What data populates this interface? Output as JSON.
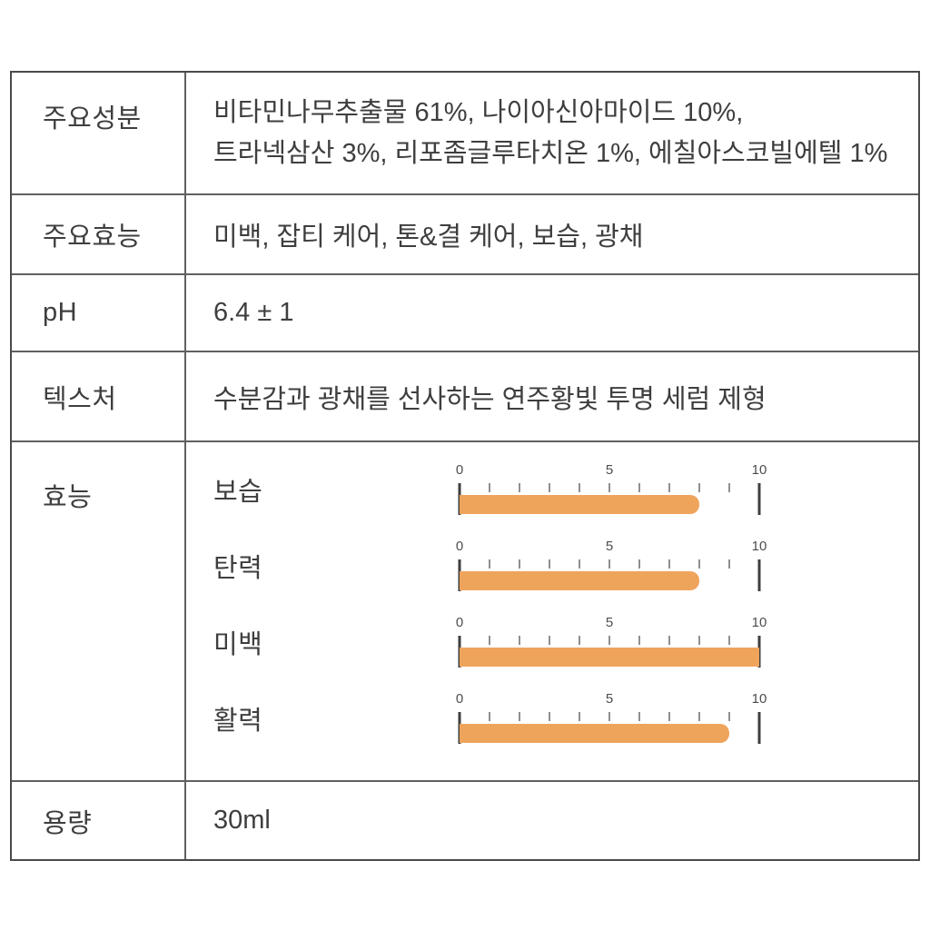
{
  "colors": {
    "bar": "#efa45c",
    "border": "#4a4a4a",
    "text": "#3e3e3e"
  },
  "rows": {
    "ingredients": {
      "label": "주요성분",
      "line1": "비타민나무추출물 61%, 나이아신아마이드 10%,",
      "line2": "트라넥삼산 3%, 리포좀글루타치온 1%, 에칠아스코빌에텔 1%"
    },
    "effects": {
      "label": "주요효능",
      "content": "미백, 잡티 케어, 톤&결 케어, 보습, 광채"
    },
    "ph": {
      "label": "pH",
      "content": "6.4 ± 1"
    },
    "texture": {
      "label": "텍스처",
      "content": "수분감과 광채를 선사하는 연주황빛 투명 세럼 제형"
    },
    "efficacy": {
      "label": "효능",
      "scale": {
        "min": 0,
        "mid": 5,
        "max": 10,
        "tick_labels": [
          "0",
          "5",
          "10"
        ]
      },
      "bars": [
        {
          "name": "보습",
          "value": 8
        },
        {
          "name": "탄력",
          "value": 8
        },
        {
          "name": "미백",
          "value": 10
        },
        {
          "name": "활력",
          "value": 9
        }
      ]
    },
    "volume": {
      "label": "용량",
      "content": "30ml"
    }
  },
  "chart_data": {
    "type": "bar",
    "orientation": "horizontal",
    "title": "효능",
    "categories": [
      "보습",
      "탄력",
      "미백",
      "활력"
    ],
    "values": [
      8,
      8,
      10,
      9
    ],
    "xlabel": "",
    "ylabel": "",
    "xlim": [
      0,
      10
    ],
    "x_tick_labels": [
      0,
      5,
      10
    ],
    "grid": false,
    "legend": false,
    "bar_color": "#efa45c"
  }
}
